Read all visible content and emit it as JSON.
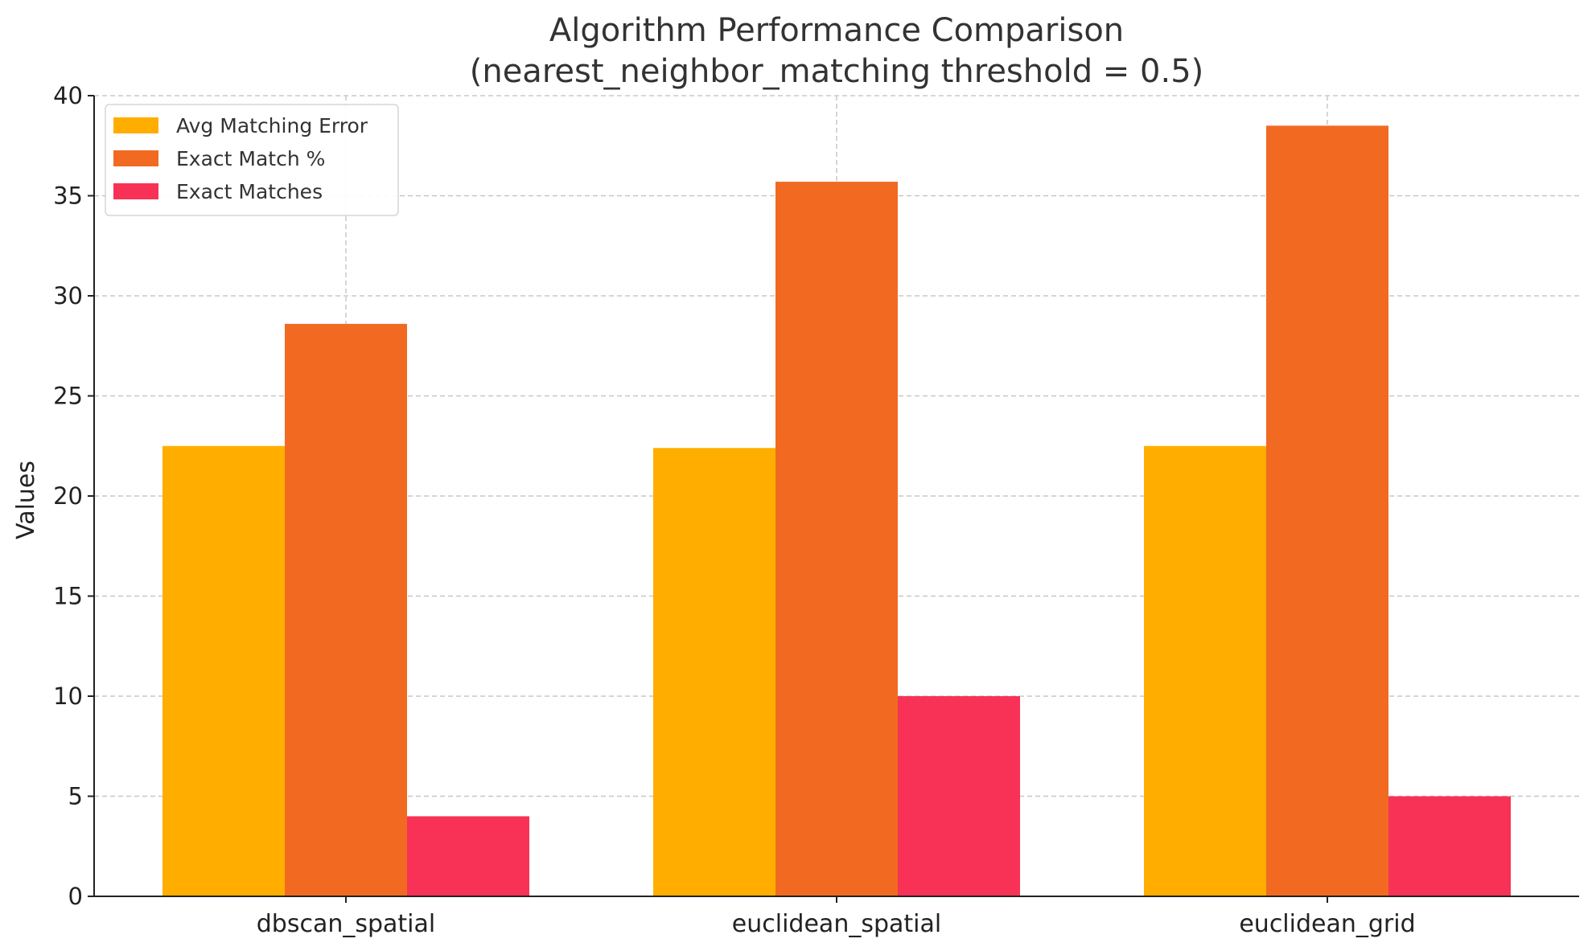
{
  "chart_data": {
    "type": "bar",
    "title_line1": "Algorithm Performance Comparison",
    "title_line2": "(nearest_neighbor_matching threshold = 0.5)",
    "xlabel": "",
    "ylabel": "Values",
    "ylim": [
      0,
      40
    ],
    "yticks": [
      0,
      5,
      10,
      15,
      20,
      25,
      30,
      35,
      40
    ],
    "grid": true,
    "legend_position": "top-left",
    "categories": [
      "dbscan_spatial",
      "euclidean_spatial",
      "euclidean_grid"
    ],
    "series": [
      {
        "name": "Avg Matching Error",
        "color": "#FFAE00",
        "values": [
          22.5,
          22.4,
          22.5
        ]
      },
      {
        "name": "Exact Match %",
        "color": "#F26A22",
        "values": [
          28.6,
          35.7,
          38.5
        ]
      },
      {
        "name": "Exact Matches",
        "color": "#F73256",
        "values": [
          4,
          10,
          5
        ]
      }
    ]
  }
}
